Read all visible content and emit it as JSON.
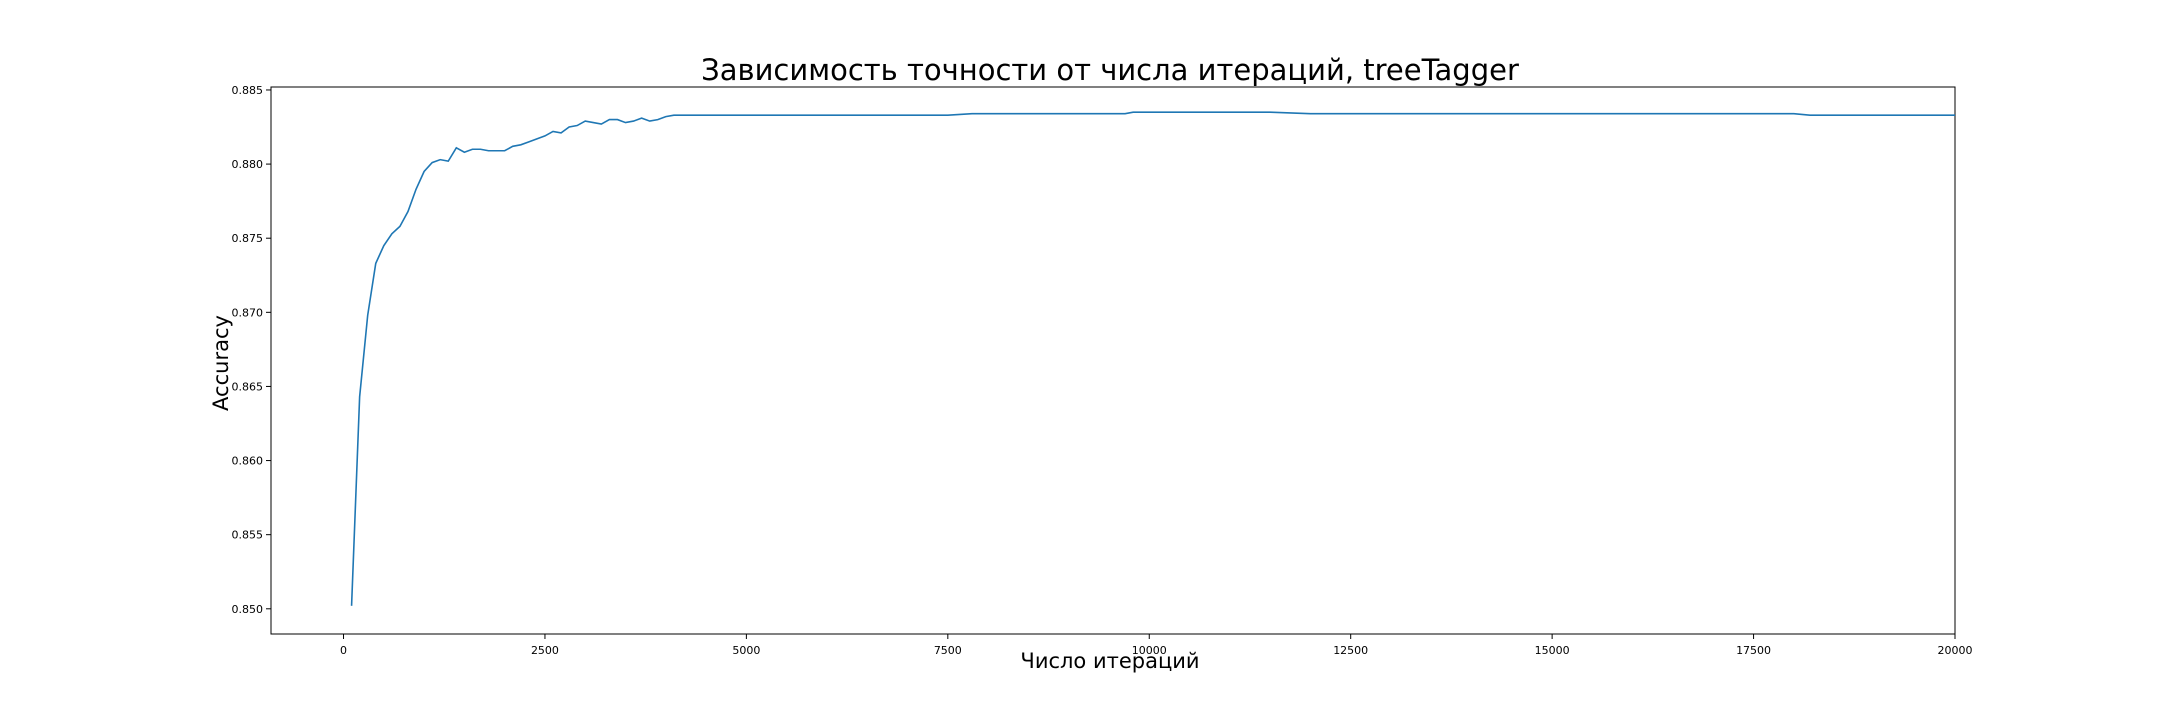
{
  "chart_data": {
    "type": "line",
    "title": "Зависимость точности от числа итераций, treeTagger",
    "xlabel": "Число итераций",
    "ylabel": "Accuracy",
    "xlim": [
      -900,
      20000
    ],
    "ylim": [
      0.8483,
      0.8852
    ],
    "x_ticks": [
      0,
      2500,
      5000,
      7500,
      10000,
      12500,
      15000,
      17500,
      20000
    ],
    "x_tick_labels": [
      "0",
      "2500",
      "5000",
      "7500",
      "10000",
      "12500",
      "15000",
      "17500",
      "20000"
    ],
    "y_ticks": [
      0.85,
      0.855,
      0.86,
      0.865,
      0.87,
      0.875,
      0.88,
      0.885
    ],
    "y_tick_labels": [
      "0.850",
      "0.855",
      "0.860",
      "0.865",
      "0.870",
      "0.875",
      "0.880",
      "0.885"
    ],
    "grid": false,
    "series_color": "#1f77b4",
    "series": [
      {
        "x": [
          100,
          200,
          300,
          400,
          500,
          600,
          700,
          800,
          900,
          1000,
          1100,
          1200,
          1300,
          1400,
          1500,
          1600,
          1700,
          1800,
          1900,
          2000,
          2100,
          2200,
          2300,
          2400,
          2500,
          2600,
          2700,
          2800,
          2900,
          3000,
          3100,
          3200,
          3300,
          3400,
          3500,
          3600,
          3700,
          3800,
          3900,
          4000,
          4100,
          4200,
          4300,
          4400,
          4600,
          4800,
          5000,
          5200,
          5500,
          6000,
          6500,
          7000,
          7500,
          7800,
          8000,
          8500,
          9000,
          9500,
          9700,
          9800,
          10000,
          10500,
          11000,
          11500,
          12000,
          12500,
          13000,
          13500,
          14000,
          14200,
          14500,
          15000,
          15500,
          16000,
          16500,
          16900,
          17200,
          17500,
          18000,
          18200,
          18500,
          19000,
          19500,
          20000
        ],
        "values": [
          0.8502,
          0.8643,
          0.8698,
          0.8733,
          0.8745,
          0.8753,
          0.8758,
          0.8768,
          0.8783,
          0.8795,
          0.8801,
          0.8803,
          0.8802,
          0.8811,
          0.8808,
          0.881,
          0.881,
          0.8809,
          0.8809,
          0.8809,
          0.8812,
          0.8813,
          0.8815,
          0.8817,
          0.8819,
          0.8822,
          0.8821,
          0.8825,
          0.8826,
          0.8829,
          0.8828,
          0.8827,
          0.883,
          0.883,
          0.8828,
          0.8829,
          0.8831,
          0.8829,
          0.883,
          0.8832,
          0.8833,
          0.8833,
          0.8833,
          0.8833,
          0.8833,
          0.8833,
          0.8833,
          0.8833,
          0.8833,
          0.8833,
          0.8833,
          0.8833,
          0.8833,
          0.8834,
          0.8834,
          0.8834,
          0.8834,
          0.8834,
          0.8834,
          0.8835,
          0.8835,
          0.8835,
          0.8835,
          0.8835,
          0.8834,
          0.8834,
          0.8834,
          0.8834,
          0.8834,
          0.8834,
          0.8834,
          0.8834,
          0.8834,
          0.8834,
          0.8834,
          0.8834,
          0.8834,
          0.8834,
          0.8834,
          0.8833,
          0.8833,
          0.8833,
          0.8833,
          0.8833
        ]
      }
    ]
  }
}
